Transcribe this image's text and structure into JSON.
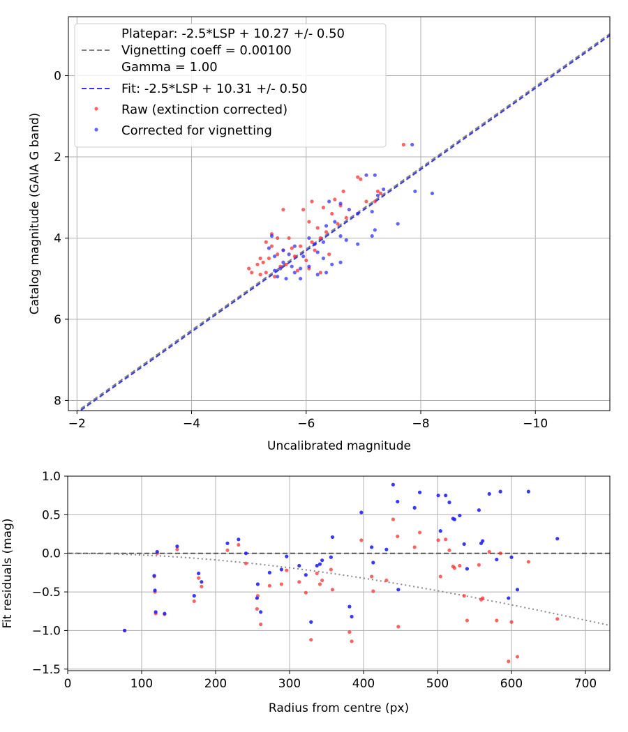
{
  "chart_data": [
    {
      "type": "scatter",
      "xlabel": "Uncalibrated magnitude",
      "ylabel": "Catalog magnitude (GAIA G band)",
      "xlim": [
        -1.85,
        -11.3
      ],
      "ylim": [
        8.25,
        -1.45
      ],
      "y_inverted": true,
      "x_inverted": true,
      "xticks": [
        -2,
        -4,
        -6,
        -8,
        -10
      ],
      "xtick_labels": [
        "−2",
        "−4",
        "−6",
        "−8",
        "−10"
      ],
      "yticks": [
        0,
        2,
        4,
        6,
        8
      ],
      "ytick_labels": [
        "0",
        "2",
        "4",
        "6",
        "8"
      ],
      "grid": true,
      "legend_placement": "top-left",
      "legend": [
        {
          "label": "Platepar: -2.5*LSP + 10.27 +/- 0.50",
          "style": "none"
        },
        {
          "label": "Vignetting coeff = 0.00100",
          "style": "dashed",
          "color": "#7f7f7f"
        },
        {
          "label": "Gamma = 1.00",
          "style": "none"
        },
        {
          "label": "Fit: -2.5*LSP + 10.31 +/- 0.50",
          "style": "dashed",
          "color": "#3333ff"
        },
        {
          "label": "Raw (extinction corrected)",
          "style": "dot",
          "color": "#ff2222"
        },
        {
          "label": "Corrected for vignetting",
          "style": "dot",
          "color": "#2222ff"
        }
      ],
      "lines": [
        {
          "name": "Platepar",
          "slope": 1,
          "intercept": 10.27,
          "color": "#7f7f7f",
          "dashed": true
        },
        {
          "name": "Fit",
          "slope": 1,
          "intercept": 10.31,
          "color": "#3333ff",
          "dashed": true
        }
      ],
      "series": [
        {
          "name": "Raw (extinction corrected)",
          "color": "#ff2222",
          "points": [
            [
              -7.7,
              1.7
            ],
            [
              -6.9,
              2.5
            ],
            [
              -6.95,
              2.55
            ],
            [
              -7.25,
              2.85
            ],
            [
              -7.3,
              2.9
            ],
            [
              -6.65,
              2.85
            ],
            [
              -6.5,
              3.05
            ],
            [
              -6.1,
              3.1
            ],
            [
              -5.6,
              3.3
            ],
            [
              -5.95,
              3.3
            ],
            [
              -6.3,
              3.25
            ],
            [
              -6.45,
              3.4
            ],
            [
              -7.2,
              3.1
            ],
            [
              -6.6,
              3.2
            ],
            [
              -7.05,
              3.1
            ],
            [
              -6.05,
              3.6
            ],
            [
              -6.2,
              3.75
            ],
            [
              -6.35,
              3.85
            ],
            [
              -6.55,
              3.65
            ],
            [
              -6.7,
              3.5
            ],
            [
              -6.25,
              4.0
            ],
            [
              -6.1,
              4.1
            ],
            [
              -5.9,
              4.2
            ],
            [
              -5.75,
              4.25
            ],
            [
              -5.6,
              4.3
            ],
            [
              -5.5,
              4.4
            ],
            [
              -5.4,
              4.2
            ],
            [
              -5.35,
              4.5
            ],
            [
              -5.2,
              4.5
            ],
            [
              -5.25,
              4.6
            ],
            [
              -5.15,
              4.65
            ],
            [
              -5.0,
              4.75
            ],
            [
              -5.05,
              4.85
            ],
            [
              -5.3,
              4.85
            ],
            [
              -5.2,
              4.9
            ],
            [
              -5.45,
              4.95
            ],
            [
              -5.55,
              4.7
            ],
            [
              -5.65,
              4.65
            ],
            [
              -5.8,
              4.45
            ],
            [
              -6.0,
              4.55
            ],
            [
              -6.05,
              4.75
            ],
            [
              -5.85,
              4.8
            ],
            [
              -6.25,
              4.85
            ],
            [
              -5.4,
              3.9
            ],
            [
              -6.4,
              4.4
            ],
            [
              -5.7,
              4.0
            ],
            [
              -5.5,
              4.0
            ],
            [
              -5.3,
              4.1
            ],
            [
              -6.15,
              4.3
            ]
          ]
        },
        {
          "name": "Corrected for vignetting",
          "color": "#2222ff",
          "points": [
            [
              -7.85,
              1.7
            ],
            [
              -7.9,
              2.85
            ],
            [
              -8.2,
              2.9
            ],
            [
              -7.05,
              2.45
            ],
            [
              -7.2,
              2.45
            ],
            [
              -7.35,
              2.8
            ],
            [
              -7.25,
              2.95
            ],
            [
              -6.4,
              3.1
            ],
            [
              -6.6,
              3.15
            ],
            [
              -6.75,
              3.3
            ],
            [
              -6.9,
              3.4
            ],
            [
              -7.15,
              3.35
            ],
            [
              -7.6,
              3.65
            ],
            [
              -7.2,
              3.8
            ],
            [
              -7.15,
              3.95
            ],
            [
              -6.5,
              3.6
            ],
            [
              -6.35,
              3.7
            ],
            [
              -6.6,
              3.95
            ],
            [
              -6.7,
              4.05
            ],
            [
              -6.9,
              4.15
            ],
            [
              -6.3,
              4.1
            ],
            [
              -6.15,
              4.15
            ],
            [
              -6.2,
              4.35
            ],
            [
              -5.95,
              4.45
            ],
            [
              -5.7,
              4.4
            ],
            [
              -5.6,
              4.6
            ],
            [
              -5.55,
              4.75
            ],
            [
              -5.45,
              4.8
            ],
            [
              -5.5,
              4.95
            ],
            [
              -5.65,
              5.0
            ],
            [
              -5.8,
              4.85
            ],
            [
              -5.9,
              4.75
            ],
            [
              -6.05,
              4.7
            ],
            [
              -6.2,
              4.9
            ],
            [
              -6.35,
              4.85
            ],
            [
              -6.45,
              4.65
            ],
            [
              -6.6,
              4.6
            ],
            [
              -6.3,
              4.5
            ],
            [
              -5.9,
              5.0
            ],
            [
              -5.4,
              3.95
            ],
            [
              -5.35,
              4.25
            ],
            [
              -5.45,
              4.45
            ],
            [
              -5.6,
              4.3
            ],
            [
              -5.8,
              4.2
            ],
            [
              -6.05,
              4.0
            ],
            [
              -5.75,
              4.7
            ]
          ]
        }
      ]
    },
    {
      "type": "scatter",
      "xlabel": "Radius from centre (px)",
      "ylabel": "Fit residuals (mag)",
      "xlim": [
        0,
        733
      ],
      "ylim": [
        -1.52,
        1.0
      ],
      "xticks": [
        0,
        100,
        200,
        300,
        400,
        500,
        600,
        700
      ],
      "xtick_labels": [
        "0",
        "100",
        "200",
        "300",
        "400",
        "500",
        "600",
        "700"
      ],
      "yticks": [
        1.0,
        0.5,
        0.0,
        -0.5,
        -1.0,
        -1.5
      ],
      "ytick_labels": [
        "1.0",
        "0.5",
        "0.0",
        "−0.5",
        "−1.0",
        "−1.5"
      ],
      "grid": true,
      "reference_line": {
        "y": 0.0,
        "color": "#555555",
        "dashed": true
      },
      "vignetting_curve": {
        "coeff": 0.001,
        "gamma": 1.0,
        "color": "#888888",
        "dotted": true
      },
      "series": [
        {
          "name": "Raw (extinction corrected)",
          "color": "#ff2222",
          "points": [
            [
              77,
              -1.0
            ],
            [
              117,
              -0.3
            ],
            [
              118,
              -0.5
            ],
            [
              119,
              -0.78
            ],
            [
              121,
              0.0
            ],
            [
              131,
              -0.79
            ],
            [
              148,
              0.05
            ],
            [
              171,
              -0.62
            ],
            [
              177,
              -0.32
            ],
            [
              181,
              -0.43
            ],
            [
              216,
              0.04
            ],
            [
              231,
              0.11
            ],
            [
              241,
              -0.13
            ],
            [
              256,
              -0.72
            ],
            [
              257,
              -0.55
            ],
            [
              261,
              -0.92
            ],
            [
              273,
              -0.42
            ],
            [
              289,
              -0.4
            ],
            [
              296,
              -0.22
            ],
            [
              313,
              -0.37
            ],
            [
              322,
              -0.51
            ],
            [
              329,
              -1.12
            ],
            [
              337,
              -0.26
            ],
            [
              341,
              -0.4
            ],
            [
              344,
              -0.35
            ],
            [
              356,
              -0.21
            ],
            [
              358,
              -0.47
            ],
            [
              381,
              -1.02
            ],
            [
              384,
              -1.14
            ],
            [
              397,
              0.17
            ],
            [
              411,
              -0.3
            ],
            [
              413,
              -0.49
            ],
            [
              431,
              -0.35
            ],
            [
              440,
              0.44
            ],
            [
              446,
              0.22
            ],
            [
              447,
              -0.95
            ],
            [
              469,
              0.08
            ],
            [
              476,
              0.27
            ],
            [
              501,
              0.17
            ],
            [
              504,
              -0.3
            ],
            [
              511,
              0.18
            ],
            [
              516,
              0.04
            ],
            [
              521,
              -0.17
            ],
            [
              523,
              -0.19
            ],
            [
              530,
              -0.16
            ],
            [
              536,
              -0.55
            ],
            [
              540,
              -0.87
            ],
            [
              556,
              -0.15
            ],
            [
              559,
              -0.6
            ],
            [
              561,
              -0.58
            ],
            [
              570,
              0.02
            ],
            [
              580,
              -0.87
            ],
            [
              585,
              0.0
            ],
            [
              596,
              -1.4
            ],
            [
              600,
              -0.89
            ],
            [
              608,
              -1.34
            ],
            [
              623,
              -0.11
            ],
            [
              662,
              -0.85
            ]
          ]
        },
        {
          "name": "Corrected for vignetting",
          "color": "#2222ff",
          "points": [
            [
              77,
              -1.0
            ],
            [
              117,
              -0.29
            ],
            [
              118,
              -0.48
            ],
            [
              119,
              -0.76
            ],
            [
              121,
              0.02
            ],
            [
              131,
              -0.78
            ],
            [
              148,
              0.09
            ],
            [
              171,
              -0.55
            ],
            [
              177,
              -0.26
            ],
            [
              181,
              -0.37
            ],
            [
              216,
              0.13
            ],
            [
              231,
              0.18
            ],
            [
              241,
              0.0
            ],
            [
              256,
              -0.58
            ],
            [
              257,
              -0.4
            ],
            [
              261,
              -0.76
            ],
            [
              273,
              -0.25
            ],
            [
              289,
              -0.21
            ],
            [
              296,
              -0.04
            ],
            [
              313,
              -0.16
            ],
            [
              322,
              -0.28
            ],
            [
              329,
              -0.89
            ],
            [
              337,
              -0.16
            ],
            [
              341,
              -0.14
            ],
            [
              344,
              -0.09
            ],
            [
              356,
              -0.05
            ],
            [
              358,
              0.21
            ],
            [
              381,
              -0.69
            ],
            [
              384,
              -0.82
            ],
            [
              397,
              0.53
            ],
            [
              411,
              0.08
            ],
            [
              413,
              -0.12
            ],
            [
              431,
              0.05
            ],
            [
              440,
              0.89
            ],
            [
              446,
              0.67
            ],
            [
              447,
              -0.47
            ],
            [
              469,
              0.59
            ],
            [
              476,
              0.79
            ],
            [
              501,
              0.75
            ],
            [
              504,
              0.29
            ],
            [
              511,
              0.75
            ],
            [
              516,
              0.66
            ],
            [
              521,
              0.45
            ],
            [
              523,
              0.44
            ],
            [
              530,
              0.49
            ],
            [
              536,
              0.12
            ],
            [
              540,
              -0.2
            ],
            [
              556,
              0.56
            ],
            [
              559,
              0.13
            ],
            [
              561,
              0.16
            ],
            [
              570,
              0.77
            ],
            [
              580,
              -0.08
            ],
            [
              585,
              0.8
            ],
            [
              596,
              -0.58
            ],
            [
              600,
              -0.05
            ],
            [
              608,
              -0.47
            ],
            [
              623,
              0.8
            ],
            [
              662,
              0.19
            ]
          ]
        }
      ]
    }
  ]
}
